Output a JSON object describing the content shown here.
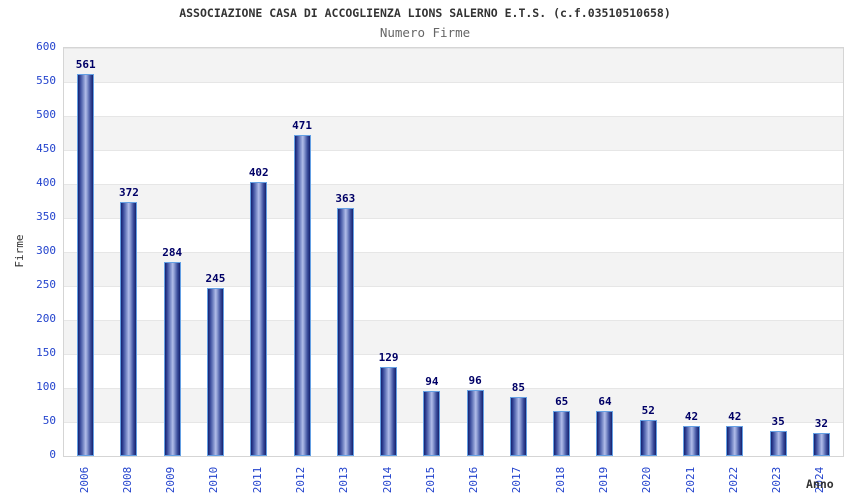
{
  "header": {
    "title": "ASSOCIAZIONE CASA DI ACCOGLIENZA LIONS SALERNO E.T.S. (c.f.03510510658)",
    "subtitle": "Numero Firme"
  },
  "axes": {
    "y_title": "Firme",
    "x_title": "Anno"
  },
  "chart_data": {
    "type": "bar",
    "title": "ASSOCIAZIONE CASA DI ACCOGLIENZA LIONS SALERNO E.T.S. (c.f.03510510658)",
    "subtitle": "Numero Firme",
    "categories": [
      "2006",
      "2008",
      "2009",
      "2010",
      "2011",
      "2012",
      "2013",
      "2014",
      "2015",
      "2016",
      "2017",
      "2018",
      "2019",
      "2020",
      "2021",
      "2022",
      "2023",
      "2024"
    ],
    "values": [
      561,
      372,
      284,
      245,
      402,
      471,
      363,
      129,
      94,
      96,
      85,
      65,
      64,
      52,
      42,
      42,
      35,
      32
    ],
    "xlabel": "Anno",
    "ylabel": "Firme",
    "ylim": [
      0,
      600
    ],
    "y_ticks": [
      0,
      50,
      100,
      150,
      200,
      250,
      300,
      350,
      400,
      450,
      500,
      550,
      600
    ],
    "grid": "horizontal-bands-alternating",
    "legend": "none",
    "colors": {
      "tick_label": "#2343cd",
      "value_label": "#000066",
      "title": "#333333",
      "subtitle": "#666666",
      "bar_edge": "#16226e",
      "bar_center": "#b2bde9",
      "bar_outline": "#64a0e4",
      "band_gray": "#f3f3f3",
      "band_white": "#ffffff",
      "grid_line": "#e6e6e6"
    }
  }
}
